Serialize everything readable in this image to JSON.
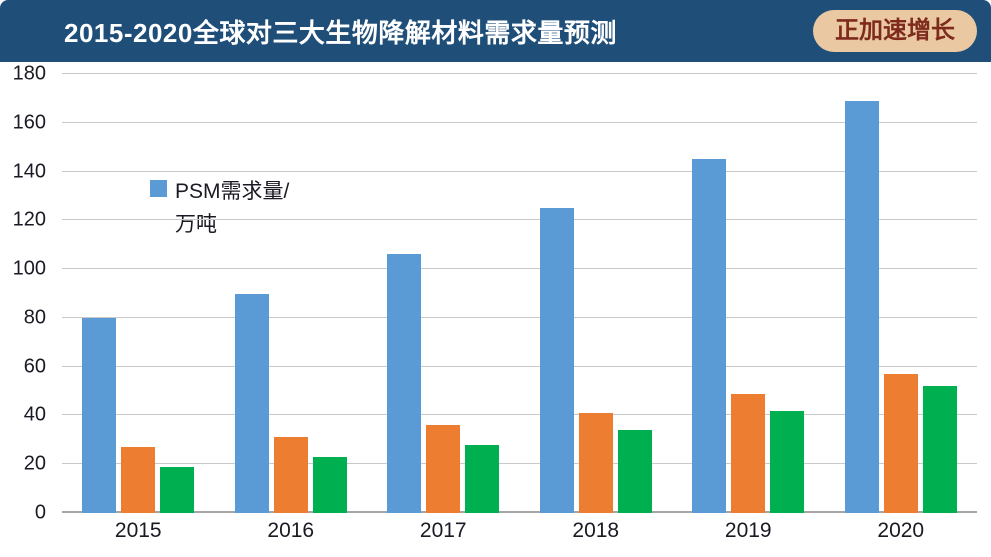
{
  "header": {
    "title": "2015-2020全球对三大生物降解材料需求量预测",
    "badge": "正加速增长"
  },
  "legend": {
    "line1": "PSM需求量/",
    "line2": "万吨"
  },
  "colors": {
    "header_bg": "#1F4E79",
    "badge_bg": "#EAC9A2",
    "badge_text": "#7E2B1E",
    "grid": "#C9C9C9"
  },
  "chart_data": {
    "type": "bar",
    "title": "2015-2020全球对三大生物降解材料需求量预测",
    "categories": [
      "2015",
      "2016",
      "2017",
      "2018",
      "2019",
      "2020"
    ],
    "series": [
      {
        "name": "PSM需求量/万吨",
        "color": "#5B9BD5",
        "values": [
          80,
          90,
          106,
          125,
          145,
          169
        ]
      },
      {
        "name": "",
        "color": "#ED7D31",
        "values": [
          27,
          31,
          36,
          41,
          49,
          57
        ]
      },
      {
        "name": "",
        "color": "#00B050",
        "values": [
          19,
          23,
          28,
          34,
          42,
          52
        ]
      }
    ],
    "ylabel": "万吨",
    "ylim": [
      0,
      180
    ],
    "ytick_step": 20,
    "grid": true,
    "legend_position": "inside-top-left"
  }
}
